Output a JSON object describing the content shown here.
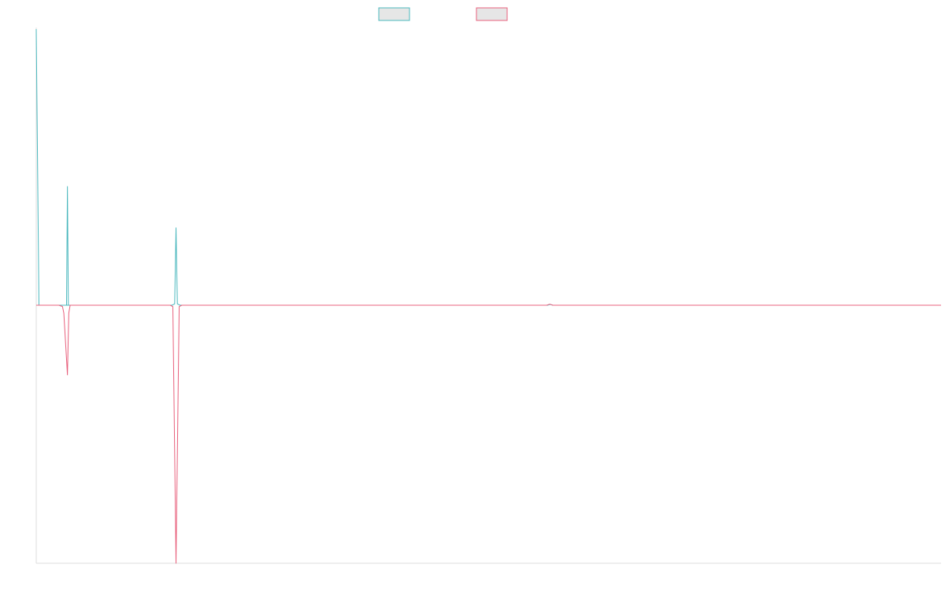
{
  "chart_data": {
    "type": "line",
    "title": "",
    "xlabel": "",
    "ylabel": "",
    "legend_position": "top-center",
    "grid": false,
    "x_count": 100,
    "ylim": [
      -1,
      1.07
    ],
    "series": [
      {
        "name": "",
        "color": "#4bb8be",
        "fill": "#e6e6e6",
        "points": [
          [
            0,
            1.07
          ],
          [
            0.3,
            0.0
          ],
          [
            3.0,
            0.0
          ],
          [
            3.7,
            0.0
          ],
          [
            3.35,
            0.0
          ],
          [
            3.45,
            0.46
          ],
          [
            3.55,
            0.0
          ],
          [
            4.0,
            0.0
          ],
          [
            15.0,
            0.0
          ],
          [
            15.3,
            0.005
          ],
          [
            15.45,
            0.3
          ],
          [
            15.6,
            0.005
          ],
          [
            15.9,
            0.0
          ],
          [
            56.5,
            0.0
          ],
          [
            56.8,
            0.003
          ],
          [
            57.1,
            0.0
          ],
          [
            100.0,
            0.0
          ]
        ]
      },
      {
        "name": "",
        "color": "#e8607c",
        "fill": "#e6e6e6",
        "points": [
          [
            0,
            0.0
          ],
          [
            0.3,
            0.0
          ],
          [
            2.5,
            0.0
          ],
          [
            2.9,
            -0.005
          ],
          [
            3.05,
            -0.03
          ],
          [
            3.45,
            -0.27
          ],
          [
            3.6,
            -0.03
          ],
          [
            3.75,
            0.0
          ],
          [
            14.8,
            0.0
          ],
          [
            15.1,
            -0.005
          ],
          [
            15.45,
            -1.0
          ],
          [
            15.8,
            -0.005
          ],
          [
            16.1,
            0.0
          ],
          [
            56.4,
            0.0
          ],
          [
            56.75,
            0.004
          ],
          [
            57.1,
            0.0
          ],
          [
            100.0,
            0.0
          ]
        ]
      }
    ]
  }
}
